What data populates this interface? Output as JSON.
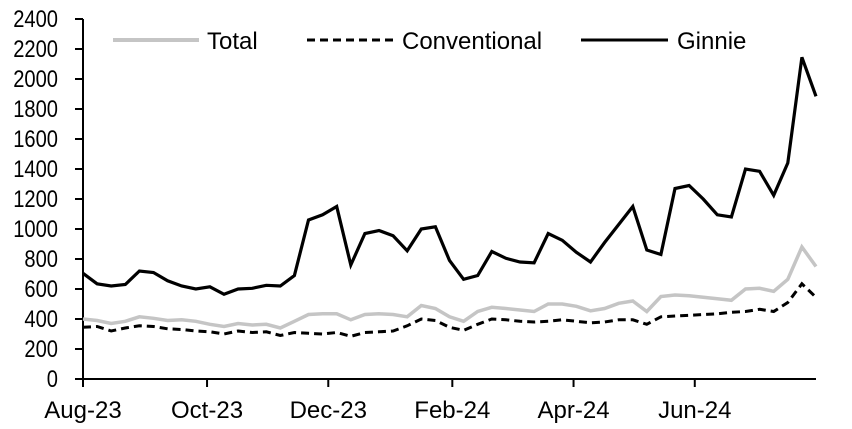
{
  "chart_data": {
    "type": "line",
    "title": "",
    "xlabel": "",
    "ylabel": "",
    "frequency": "weekly",
    "x_tick_labels": [
      "Aug-23",
      "Oct-23",
      "Dec-23",
      "Feb-24",
      "Apr-24",
      "Jun-24"
    ],
    "x_tick_week_index": [
      0,
      8.8,
      17.4,
      26.2,
      34.8,
      43.4
    ],
    "x_total_weeks": 52,
    "ylim": [
      0,
      2400
    ],
    "y_tick_step": 200,
    "grid": false,
    "legend_position": "top",
    "background_color": "#ffffff",
    "axis_color": "#000000",
    "series": [
      {
        "name": "Total",
        "color": "#c5c5c5",
        "style": "solid",
        "dash": "",
        "line_width": 3.5,
        "values": [
          400,
          390,
          370,
          385,
          415,
          405,
          390,
          395,
          385,
          365,
          350,
          370,
          360,
          365,
          340,
          385,
          430,
          435,
          435,
          395,
          430,
          435,
          430,
          415,
          490,
          470,
          415,
          385,
          450,
          478,
          470,
          460,
          450,
          500,
          500,
          485,
          455,
          470,
          505,
          520,
          450,
          550,
          560,
          555,
          545,
          535,
          525,
          600,
          605,
          585,
          665,
          880,
          750
        ]
      },
      {
        "name": "Conventional",
        "color": "#000000",
        "style": "dashed",
        "dash": "8 5",
        "line_width": 3,
        "values": [
          345,
          350,
          320,
          340,
          355,
          350,
          335,
          330,
          320,
          315,
          300,
          320,
          310,
          315,
          290,
          310,
          305,
          300,
          310,
          285,
          310,
          315,
          320,
          355,
          400,
          390,
          345,
          325,
          365,
          400,
          395,
          385,
          380,
          385,
          395,
          385,
          375,
          380,
          395,
          395,
          365,
          415,
          420,
          425,
          430,
          435,
          445,
          450,
          465,
          450,
          510,
          635,
          545
        ]
      },
      {
        "name": "Ginnie",
        "color": "#000000",
        "style": "solid",
        "dash": "",
        "line_width": 3.2,
        "values": [
          705,
          635,
          620,
          630,
          720,
          710,
          655,
          620,
          600,
          615,
          565,
          600,
          605,
          625,
          620,
          690,
          1060,
          1095,
          1150,
          760,
          970,
          990,
          955,
          855,
          1000,
          1015,
          790,
          665,
          690,
          850,
          805,
          780,
          775,
          970,
          925,
          845,
          780,
          910,
          1030,
          1150,
          860,
          830,
          1270,
          1290,
          1200,
          1095,
          1080,
          1400,
          1385,
          1225,
          1440,
          2145,
          1885
        ]
      }
    ]
  }
}
